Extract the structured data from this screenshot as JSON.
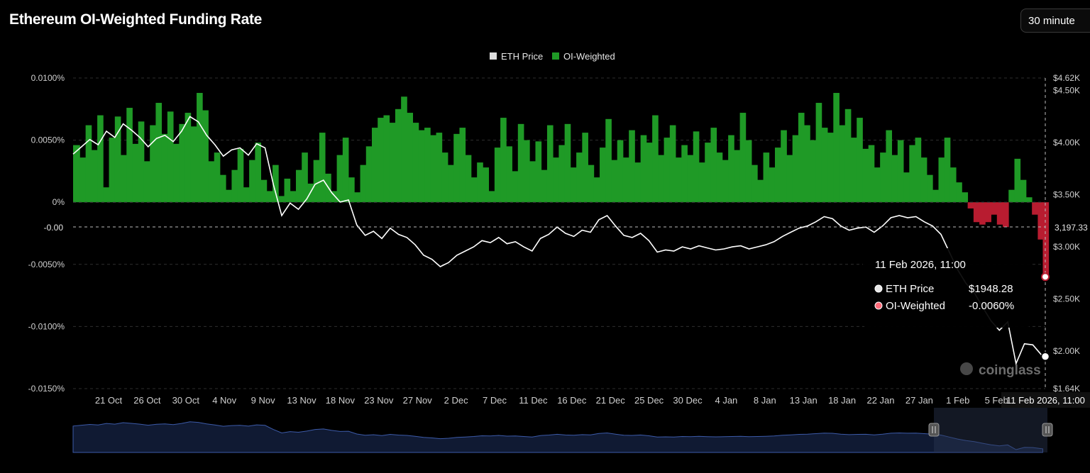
{
  "header": {
    "title": "Ethereum OI-Weighted Funding Rate",
    "interval_label": "30 minute"
  },
  "colors": {
    "positive": "#1f9a26",
    "negative": "#b81c30",
    "price_line": "#ffffff",
    "grid": "#2e2e2e",
    "navigator_fill": "#101a33",
    "navigator_line": "#3c5aa8"
  },
  "crosshair": {
    "left_label": "-0.00",
    "right_label": "3,197.33",
    "x_label": "11 Feb 2026, 11:00"
  },
  "tooltip": {
    "title": "11 Feb 2026, 11:00",
    "rows": [
      {
        "label": "ETH Price",
        "value": "$1948.28"
      },
      {
        "label": "OI-Weighted",
        "value": "-0.0060%"
      }
    ]
  },
  "watermark": "coinglass",
  "chart_data": {
    "type": "area",
    "legend": [
      {
        "name": "ETH Price",
        "color": "#dddddd"
      },
      {
        "name": "OI-Weighted",
        "color": "#1f9a26"
      }
    ],
    "x_ticks": [
      "21 Oct",
      "26 Oct",
      "30 Oct",
      "4 Nov",
      "9 Nov",
      "13 Nov",
      "18 Nov",
      "23 Nov",
      "27 Nov",
      "2 Dec",
      "7 Dec",
      "11 Dec",
      "16 Dec",
      "21 Dec",
      "25 Dec",
      "30 Dec",
      "4 Jan",
      "8 Jan",
      "13 Jan",
      "18 Jan",
      "22 Jan",
      "27 Jan",
      "1 Feb",
      "5 Feb"
    ],
    "y_left": {
      "ticks": [
        "0.0100%",
        "0.0050%",
        "0%",
        "-0.0050%",
        "-0.0100%",
        "-0.0150%"
      ],
      "range": [
        -0.015,
        0.01
      ]
    },
    "y_right": {
      "ticks": [
        "$4.62K",
        "$4.50K",
        "$4.00K",
        "$3.50K",
        "$3.00K",
        "$2.50K",
        "$2.00K",
        "$1.64K"
      ],
      "range": [
        1640,
        4620
      ]
    },
    "x_range_days": [
      0,
      116.5
    ],
    "series": [
      {
        "name": "OI-Weighted",
        "unit": "%",
        "points": [
          [
            0.0,
            0.0046
          ],
          [
            0.8,
            0.0036
          ],
          [
            1.5,
            0.0062
          ],
          [
            2.2,
            0.0042
          ],
          [
            2.9,
            0.007
          ],
          [
            3.6,
            0.0012
          ],
          [
            4.3,
            0.0052
          ],
          [
            5.0,
            0.0069
          ],
          [
            5.7,
            0.0038
          ],
          [
            6.4,
            0.0076
          ],
          [
            7.1,
            0.0047
          ],
          [
            7.8,
            0.0065
          ],
          [
            8.5,
            0.0033
          ],
          [
            9.2,
            0.0062
          ],
          [
            9.9,
            0.008
          ],
          [
            10.6,
            0.0055
          ],
          [
            11.3,
            0.0073
          ],
          [
            12.0,
            0.0047
          ],
          [
            12.7,
            0.0063
          ],
          [
            13.4,
            0.0072
          ],
          [
            14.1,
            0.0061
          ],
          [
            14.8,
            0.0088
          ],
          [
            15.5,
            0.0074
          ],
          [
            16.2,
            0.0033
          ],
          [
            16.9,
            0.004
          ],
          [
            17.6,
            0.0022
          ],
          [
            18.3,
            0.001
          ],
          [
            19.0,
            0.0026
          ],
          [
            19.7,
            0.0043
          ],
          [
            20.4,
            0.0012
          ],
          [
            21.1,
            0.0034
          ],
          [
            21.8,
            0.0048
          ],
          [
            22.5,
            0.0018
          ],
          [
            23.2,
            0.0009
          ],
          [
            23.9,
            0.003
          ],
          [
            24.6,
            0.0005
          ],
          [
            25.3,
            0.0019
          ],
          [
            26.0,
            0.0009
          ],
          [
            26.7,
            0.0026
          ],
          [
            27.4,
            0.004
          ],
          [
            28.1,
            0.0015
          ],
          [
            28.8,
            0.0034
          ],
          [
            29.5,
            0.0056
          ],
          [
            30.2,
            0.0023
          ],
          [
            30.9,
            0.0009
          ],
          [
            31.6,
            0.0038
          ],
          [
            32.3,
            0.0052
          ],
          [
            33.0,
            0.002
          ],
          [
            33.7,
            0.0008
          ],
          [
            34.4,
            0.003
          ],
          [
            35.1,
            0.0045
          ],
          [
            35.8,
            0.006
          ],
          [
            36.5,
            0.0068
          ],
          [
            37.2,
            0.007
          ],
          [
            37.9,
            0.0064
          ],
          [
            38.6,
            0.0075
          ],
          [
            39.3,
            0.0085
          ],
          [
            40.0,
            0.0072
          ],
          [
            40.7,
            0.0064
          ],
          [
            41.4,
            0.0058
          ],
          [
            42.1,
            0.006
          ],
          [
            42.8,
            0.0054
          ],
          [
            43.5,
            0.0056
          ],
          [
            44.2,
            0.004
          ],
          [
            44.9,
            0.003
          ],
          [
            45.6,
            0.0055
          ],
          [
            46.3,
            0.006
          ],
          [
            47.0,
            0.0038
          ],
          [
            47.7,
            0.002
          ],
          [
            48.4,
            0.0032
          ],
          [
            49.1,
            0.0028
          ],
          [
            49.8,
            0.0009
          ],
          [
            50.5,
            0.0044
          ],
          [
            51.2,
            0.0068
          ],
          [
            51.9,
            0.0045
          ],
          [
            52.6,
            0.0025
          ],
          [
            53.3,
            0.0063
          ],
          [
            54.0,
            0.005
          ],
          [
            54.7,
            0.0033
          ],
          [
            55.4,
            0.0049
          ],
          [
            56.1,
            0.0026
          ],
          [
            56.8,
            0.0062
          ],
          [
            57.5,
            0.0036
          ],
          [
            58.2,
            0.0046
          ],
          [
            58.9,
            0.0063
          ],
          [
            59.6,
            0.0028
          ],
          [
            60.3,
            0.004
          ],
          [
            61.0,
            0.0056
          ],
          [
            61.7,
            0.003
          ],
          [
            62.4,
            0.002
          ],
          [
            63.1,
            0.0044
          ],
          [
            63.8,
            0.0067
          ],
          [
            64.5,
            0.0034
          ],
          [
            65.2,
            0.005
          ],
          [
            65.9,
            0.0036
          ],
          [
            66.6,
            0.0058
          ],
          [
            67.3,
            0.0032
          ],
          [
            68.0,
            0.0054
          ],
          [
            68.7,
            0.0048
          ],
          [
            69.4,
            0.007
          ],
          [
            70.1,
            0.0038
          ],
          [
            70.8,
            0.0052
          ],
          [
            71.5,
            0.0062
          ],
          [
            72.2,
            0.0036
          ],
          [
            72.9,
            0.0046
          ],
          [
            73.6,
            0.0038
          ],
          [
            74.3,
            0.0057
          ],
          [
            75.0,
            0.0032
          ],
          [
            75.7,
            0.0048
          ],
          [
            76.4,
            0.006
          ],
          [
            77.1,
            0.004
          ],
          [
            77.8,
            0.0034
          ],
          [
            78.5,
            0.0054
          ],
          [
            79.2,
            0.0042
          ],
          [
            79.9,
            0.0072
          ],
          [
            80.6,
            0.005
          ],
          [
            81.3,
            0.003
          ],
          [
            82.0,
            0.0018
          ],
          [
            82.7,
            0.004
          ],
          [
            83.4,
            0.0028
          ],
          [
            84.1,
            0.0044
          ],
          [
            84.8,
            0.0058
          ],
          [
            85.5,
            0.0038
          ],
          [
            86.2,
            0.0054
          ],
          [
            86.9,
            0.0072
          ],
          [
            87.6,
            0.0062
          ],
          [
            88.3,
            0.005
          ],
          [
            89.0,
            0.008
          ],
          [
            89.7,
            0.006
          ],
          [
            90.4,
            0.0056
          ],
          [
            91.1,
            0.0088
          ],
          [
            91.8,
            0.0062
          ],
          [
            92.5,
            0.0075
          ],
          [
            93.2,
            0.0052
          ],
          [
            93.9,
            0.0068
          ],
          [
            94.6,
            0.0043
          ],
          [
            95.3,
            0.0046
          ],
          [
            96.0,
            0.0028
          ],
          [
            96.7,
            0.004
          ],
          [
            97.4,
            0.0058
          ],
          [
            98.1,
            0.0038
          ],
          [
            98.8,
            0.005
          ],
          [
            99.5,
            0.0024
          ],
          [
            100.2,
            0.0046
          ],
          [
            100.9,
            0.0052
          ],
          [
            101.6,
            0.0036
          ],
          [
            102.3,
            0.0022
          ],
          [
            103.0,
            0.001
          ],
          [
            103.7,
            0.0036
          ],
          [
            104.4,
            0.0052
          ],
          [
            105.1,
            0.0028
          ],
          [
            105.8,
            0.0016
          ],
          [
            106.5,
            0.0008
          ],
          [
            107.2,
            -0.0005
          ],
          [
            107.9,
            -0.0016
          ],
          [
            108.6,
            -0.0018
          ],
          [
            109.3,
            -0.0016
          ],
          [
            110.0,
            -0.001
          ],
          [
            110.7,
            -0.0018
          ],
          [
            111.4,
            -0.002
          ],
          [
            112.1,
            0.001
          ],
          [
            112.8,
            0.0035
          ],
          [
            113.5,
            0.0018
          ],
          [
            114.2,
            0.0004
          ],
          [
            114.9,
            -0.001
          ],
          [
            115.6,
            -0.003
          ],
          [
            116.2,
            -0.006
          ]
        ]
      },
      {
        "name": "ETH Price",
        "unit": "USD",
        "points": [
          [
            0.0,
            3890
          ],
          [
            1.0,
            3960
          ],
          [
            2.0,
            4030
          ],
          [
            3.0,
            3980
          ],
          [
            4.0,
            4110
          ],
          [
            5.0,
            4050
          ],
          [
            6.0,
            4180
          ],
          [
            7.0,
            4120
          ],
          [
            8.0,
            4050
          ],
          [
            9.0,
            3960
          ],
          [
            10.0,
            4040
          ],
          [
            11.0,
            4070
          ],
          [
            12.0,
            4010
          ],
          [
            13.0,
            4110
          ],
          [
            14.0,
            4250
          ],
          [
            15.0,
            4200
          ],
          [
            16.0,
            4070
          ],
          [
            17.0,
            3980
          ],
          [
            18.0,
            3870
          ],
          [
            19.0,
            3930
          ],
          [
            20.0,
            3950
          ],
          [
            21.0,
            3880
          ],
          [
            22.0,
            3990
          ],
          [
            23.0,
            3950
          ],
          [
            24.0,
            3600
          ],
          [
            25.0,
            3300
          ],
          [
            26.0,
            3420
          ],
          [
            27.0,
            3360
          ],
          [
            28.0,
            3460
          ],
          [
            29.0,
            3600
          ],
          [
            30.0,
            3640
          ],
          [
            31.0,
            3520
          ],
          [
            32.0,
            3430
          ],
          [
            33.0,
            3450
          ],
          [
            34.0,
            3210
          ],
          [
            35.0,
            3110
          ],
          [
            36.0,
            3150
          ],
          [
            37.0,
            3080
          ],
          [
            38.0,
            3180
          ],
          [
            39.0,
            3120
          ],
          [
            40.0,
            3090
          ],
          [
            41.0,
            3020
          ],
          [
            42.0,
            2920
          ],
          [
            43.0,
            2880
          ],
          [
            44.0,
            2810
          ],
          [
            45.0,
            2850
          ],
          [
            46.0,
            2920
          ],
          [
            47.0,
            2960
          ],
          [
            48.0,
            3000
          ],
          [
            49.0,
            3060
          ],
          [
            50.0,
            3040
          ],
          [
            51.0,
            3090
          ],
          [
            52.0,
            3030
          ],
          [
            53.0,
            3050
          ],
          [
            54.0,
            3000
          ],
          [
            55.0,
            2960
          ],
          [
            56.0,
            3080
          ],
          [
            57.0,
            3120
          ],
          [
            58.0,
            3190
          ],
          [
            59.0,
            3130
          ],
          [
            60.0,
            3100
          ],
          [
            61.0,
            3160
          ],
          [
            62.0,
            3140
          ],
          [
            63.0,
            3260
          ],
          [
            64.0,
            3300
          ],
          [
            65.0,
            3200
          ],
          [
            66.0,
            3110
          ],
          [
            67.0,
            3090
          ],
          [
            68.0,
            3130
          ],
          [
            69.0,
            3060
          ],
          [
            70.0,
            2950
          ],
          [
            71.0,
            2970
          ],
          [
            72.0,
            2960
          ],
          [
            73.0,
            3000
          ],
          [
            74.0,
            2980
          ],
          [
            75.0,
            3010
          ],
          [
            76.0,
            2990
          ],
          [
            77.0,
            2970
          ],
          [
            78.0,
            2980
          ],
          [
            79.0,
            3000
          ],
          [
            80.0,
            3010
          ],
          [
            81.0,
            2980
          ],
          [
            82.0,
            3000
          ],
          [
            83.0,
            3020
          ],
          [
            84.0,
            3050
          ],
          [
            85.0,
            3100
          ],
          [
            86.0,
            3140
          ],
          [
            87.0,
            3180
          ],
          [
            88.0,
            3200
          ],
          [
            89.0,
            3240
          ],
          [
            90.0,
            3290
          ],
          [
            91.0,
            3270
          ],
          [
            92.0,
            3200
          ],
          [
            93.0,
            3160
          ],
          [
            94.0,
            3180
          ],
          [
            95.0,
            3190
          ],
          [
            96.0,
            3140
          ],
          [
            97.0,
            3200
          ],
          [
            98.0,
            3280
          ],
          [
            99.0,
            3300
          ],
          [
            100.0,
            3280
          ],
          [
            101.0,
            3290
          ],
          [
            102.0,
            3240
          ],
          [
            103.0,
            3200
          ],
          [
            104.0,
            3120
          ],
          [
            105.0,
            2950
          ],
          [
            106.0,
            2780
          ],
          [
            107.0,
            2650
          ],
          [
            108.0,
            2560
          ],
          [
            109.0,
            2420
          ],
          [
            110.0,
            2290
          ],
          [
            111.0,
            2200
          ],
          [
            112.0,
            2280
          ],
          [
            113.0,
            1880
          ],
          [
            114.0,
            2070
          ],
          [
            115.0,
            2060
          ],
          [
            116.2,
            1948
          ]
        ]
      }
    ]
  }
}
